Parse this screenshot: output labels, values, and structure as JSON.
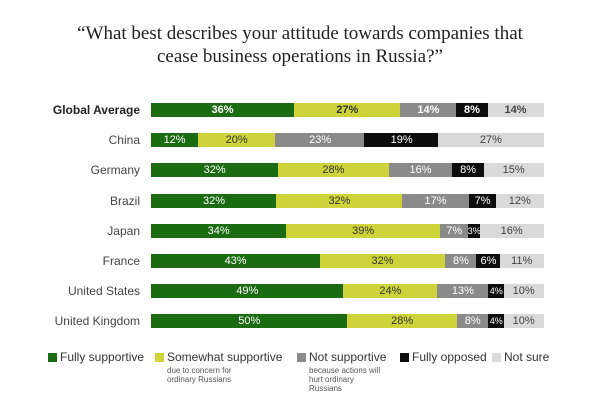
{
  "title_lines": [
    "“What best describes your attitude towards companies that",
    "cease business operations in Russia?”"
  ],
  "chart_data": {
    "type": "bar",
    "stacked": true,
    "orientation": "horizontal",
    "title": "“What best describes your attitude towards companies that cease business operations in Russia?”",
    "categories": [
      "Global Average",
      "China",
      "Germany",
      "Brazil",
      "Japan",
      "France",
      "United States",
      "United Kingdom"
    ],
    "series": [
      {
        "name": "Fully supportive",
        "color": "#1b6b12",
        "text_color": "#ffffff",
        "values": [
          36,
          12,
          32,
          32,
          34,
          43,
          49,
          50
        ],
        "labels": [
          "36%",
          "12%",
          "32%",
          "32%",
          "34%",
          "43%",
          "49%",
          "50%"
        ]
      },
      {
        "name": "Somewhat supportive",
        "color": "#cfd33a",
        "text_color": "#333333",
        "values": [
          27,
          20,
          28,
          32,
          39,
          32,
          24,
          28
        ],
        "labels": [
          "27%",
          "20%",
          "28%",
          "32%",
          "39%",
          "32%",
          "24%",
          "28%"
        ]
      },
      {
        "name": "Not supportive",
        "color": "#8a8a8a",
        "text_color": "#ffffff",
        "values": [
          14,
          23,
          16,
          17,
          7,
          8,
          13,
          8
        ],
        "labels": [
          "14%",
          "23%",
          "16%",
          "17%",
          "7%",
          "8%",
          "13%",
          "8%"
        ]
      },
      {
        "name": "Fully opposed",
        "color": "#0d0d0d",
        "text_color": "#ffffff",
        "values": [
          8,
          19,
          8,
          7,
          3,
          6,
          4,
          4
        ],
        "labels": [
          "8%",
          "19%",
          "8%",
          "7%",
          "3%",
          "6%",
          "4%",
          "4%"
        ]
      },
      {
        "name": "Not sure",
        "color": "#d9d9d9",
        "text_color": "#444444",
        "values": [
          14,
          27,
          15,
          12,
          16,
          11,
          10,
          10
        ],
        "labels": [
          "14%",
          "27%",
          "15%",
          "12%",
          "16%",
          "11%",
          "10%",
          "10%"
        ]
      }
    ],
    "legend_position": "bottom",
    "grid": false,
    "xlim": [
      0,
      100
    ]
  },
  "legend": [
    {
      "label": "Fully supportive",
      "sublabel": ""
    },
    {
      "label": "Somewhat supportive",
      "sublabel": "due to concern for ordinary Russians"
    },
    {
      "label": "Not supportive",
      "sublabel": "because actions will hurt ordinary Russians"
    },
    {
      "label": "Fully opposed",
      "sublabel": ""
    },
    {
      "label": "Not sure",
      "sublabel": ""
    }
  ]
}
